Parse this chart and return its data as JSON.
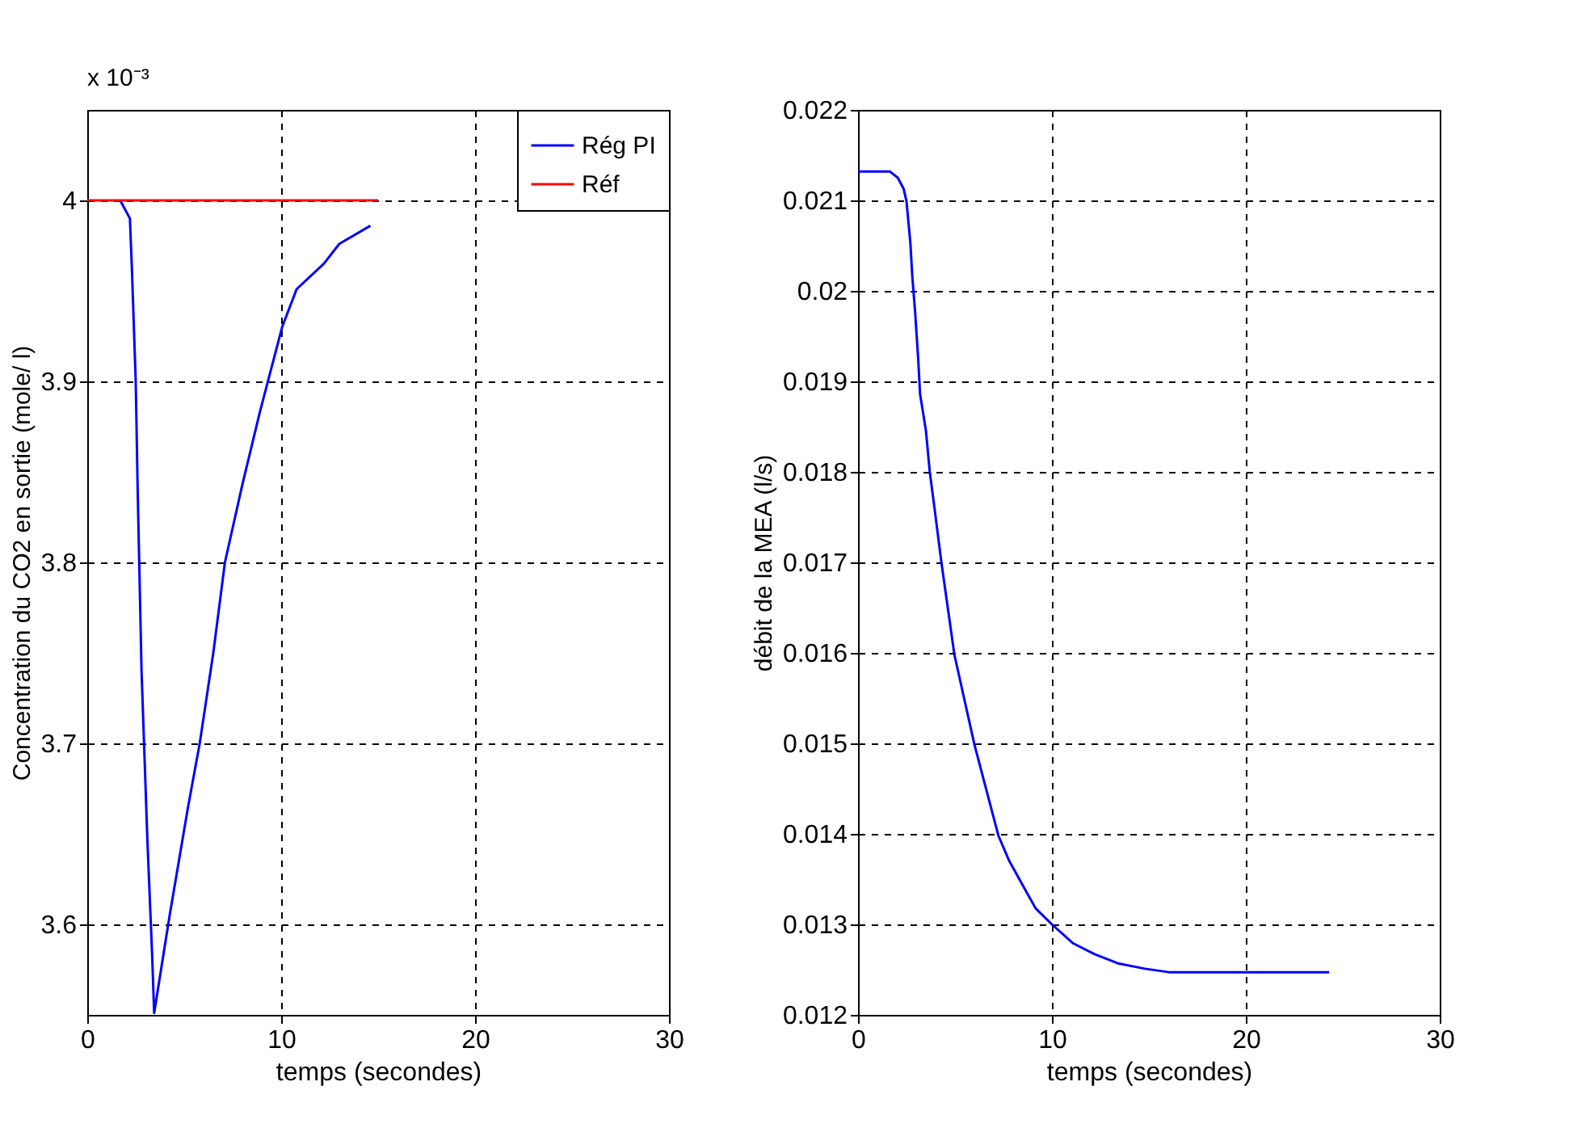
{
  "chart_data": [
    {
      "type": "line",
      "xlabel": "temps (secondes)",
      "ylabel": "Concentration du CO2 en sortie (mole/ l)",
      "annotations": [
        "x 10⁻³"
      ],
      "xlim": [
        0,
        30
      ],
      "xticks": [
        0,
        10,
        20,
        30
      ],
      "ylim": [
        3.55,
        4.05
      ],
      "yticks": [
        3.6,
        3.7,
        3.8,
        3.9,
        4
      ],
      "grid": true,
      "legend": "top right",
      "series": [
        {
          "name": "Rég PI",
          "color": "#0000ff",
          "x": [
            1.7,
            2.2,
            2.3,
            2.5,
            2.6,
            2.8,
            3.1,
            3.35,
            3.45,
            4.25,
            5.2,
            5.8,
            6.5,
            7.1,
            8.0,
            8.9,
            10.05,
            10.8,
            12.2,
            13.0,
            14.6
          ],
          "values": [
            4.0,
            3.99,
            3.963,
            3.9,
            3.84,
            3.74,
            3.647,
            3.582,
            3.551,
            3.605,
            3.665,
            3.7,
            3.75,
            3.8,
            3.843,
            3.883,
            3.93,
            3.951,
            3.965,
            3.976,
            3.986
          ]
        },
        {
          "name": "Réf",
          "color": "#ff0000",
          "x": [
            0,
            15
          ],
          "values": [
            4.0,
            4.0
          ]
        }
      ]
    },
    {
      "type": "line",
      "xlabel": "temps (secondes)",
      "ylabel": "débit de la MEA (l/s)",
      "xlim": [
        0,
        30
      ],
      "xticks": [
        0,
        10,
        20,
        30
      ],
      "ylim": [
        0.012,
        0.022
      ],
      "yticks": [
        0.012,
        0.013,
        0.014,
        0.015,
        0.016,
        0.017,
        0.018,
        0.019,
        0.02,
        0.021,
        0.022
      ],
      "grid": true,
      "series": [
        {
          "color": "#0000ff",
          "x": [
            0,
            1.64,
            2.05,
            2.35,
            2.5,
            2.7,
            2.8,
            2.95,
            3.1,
            3.2,
            3.5,
            3.7,
            3.95,
            4.3,
            4.97,
            6.0,
            7.24,
            7.8,
            9.15,
            10,
            11.1,
            12.2,
            13.4,
            14.8,
            16.1,
            24.3
          ],
          "values": [
            0.02132,
            0.02132,
            0.02125,
            0.02113,
            0.02099,
            0.02053,
            0.02016,
            0.01975,
            0.01926,
            0.01886,
            0.01846,
            0.018,
            0.01759,
            0.017,
            0.01598,
            0.01499,
            0.01398,
            0.0137,
            0.01318,
            0.013,
            0.01279,
            0.01267,
            0.01257,
            0.01251,
            0.01247,
            0.01247
          ]
        }
      ]
    }
  ]
}
